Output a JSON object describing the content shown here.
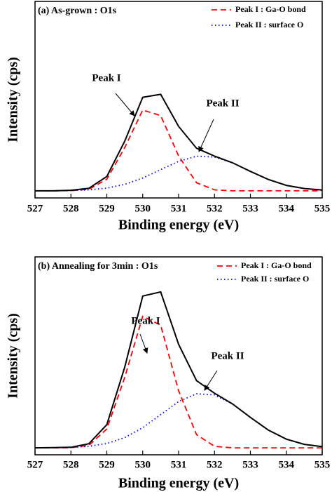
{
  "chart_data": [
    {
      "type": "line",
      "title": "(a) As-grown : O1s",
      "xlabel": "Binding energy (eV)",
      "ylabel": "Intensity (cps)",
      "x": [
        527,
        527.5,
        528,
        528.5,
        529,
        529.5,
        530,
        530.5,
        531,
        531.5,
        532,
        532.5,
        533,
        533.5,
        534,
        534.5,
        535
      ],
      "series": [
        {
          "color": "#000000",
          "dash": "solid",
          "values": [
            3.6,
            3.6,
            3.9,
            4.9,
            10.9,
            28.9,
            51.2,
            52.7,
            36.4,
            25.3,
            21.3,
            17.9,
            13.5,
            9.4,
            6.4,
            4.8,
            4.0
          ]
        },
        {
          "name": "Peak I : Ga-O bond",
          "color": "#ff0000",
          "dash": "dashed",
          "values": [
            3.6,
            3.6,
            3.7,
            4.4,
            9.5,
            25.6,
            44.7,
            41.9,
            21.4,
            7.7,
            4.1,
            3.6,
            3.6,
            3.6,
            3.6,
            3.6,
            3.6
          ]
        },
        {
          "name": "Peak II : surface O",
          "color": "#0000ff",
          "dash": "dotted",
          "values": [
            3.6,
            3.6,
            3.8,
            4.1,
            5.0,
            6.9,
            10.1,
            14.4,
            18.6,
            21.2,
            20.8,
            17.9,
            13.5,
            9.4,
            6.4,
            4.8,
            4.0
          ]
        }
      ],
      "annotations": [
        {
          "text": "Peak I"
        },
        {
          "text": "Peak II"
        }
      ],
      "xlim": [
        527,
        535
      ],
      "xticks": [
        527,
        528,
        529,
        530,
        531,
        532,
        533,
        534,
        535
      ],
      "ylim": [
        0,
        100
      ],
      "legend": "upper right"
    },
    {
      "type": "line",
      "title": "(b) Annealing for 3min : O1s",
      "xlabel": "Binding energy (eV)",
      "ylabel": "Intensity (cps)",
      "x": [
        527,
        527.5,
        528,
        528.5,
        529,
        529.5,
        530,
        530.5,
        531,
        531.5,
        532,
        532.5,
        533,
        533.5,
        534,
        534.5,
        535
      ],
      "series": [
        {
          "color": "#000000",
          "dash": "solid",
          "values": [
            3.5,
            3.6,
            3.8,
            5.6,
            15.2,
            44.3,
            80.2,
            82.3,
            55.8,
            37.5,
            31.1,
            25.7,
            18.9,
            12.5,
            7.9,
            5.3,
            4.1
          ]
        },
        {
          "name": "Peak I : Ga-O bond",
          "color": "#ff0000",
          "dash": "dashed",
          "values": [
            3.5,
            3.5,
            3.6,
            4.8,
            13.0,
            39.1,
            70.0,
            65.5,
            32.4,
            10.2,
            4.3,
            3.5,
            3.5,
            3.5,
            3.5,
            3.5,
            3.5
          ]
        },
        {
          "name": "Peak II : surface O",
          "color": "#0000ff",
          "dash": "dotted",
          "values": [
            3.5,
            3.6,
            3.7,
            4.3,
            5.7,
            8.7,
            13.7,
            20.3,
            26.9,
            30.8,
            30.3,
            25.7,
            18.9,
            12.5,
            7.9,
            5.3,
            4.1
          ]
        }
      ],
      "annotations": [
        {
          "text": "Peak I"
        },
        {
          "text": "Peak II"
        }
      ],
      "xlim": [
        527,
        535
      ],
      "xticks": [
        527,
        528,
        529,
        530,
        531,
        532,
        533,
        534,
        535
      ],
      "ylim": [
        0,
        100
      ],
      "legend": "upper right"
    }
  ]
}
